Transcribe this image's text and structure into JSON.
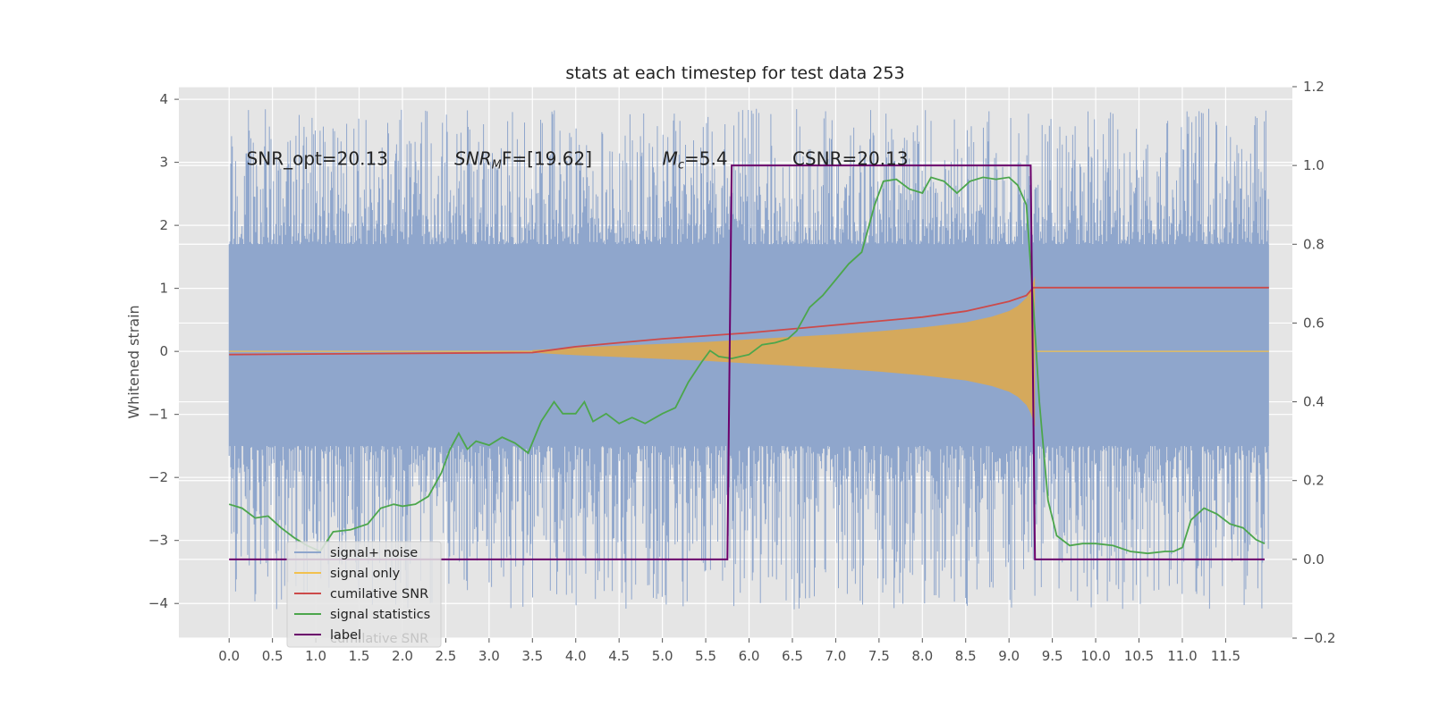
{
  "chart_data": {
    "type": "line",
    "title": "stats at each timestep for test data 253",
    "ylabel": "Whitened strain",
    "xlim": [
      -0.58,
      12.27
    ],
    "ylim": [
      -4.55,
      4.2
    ],
    "y2lim": [
      -0.2,
      1.2
    ],
    "grid": true,
    "x_ticks": [
      0.0,
      0.5,
      1.0,
      1.5,
      2.0,
      2.5,
      3.0,
      3.5,
      4.0,
      4.5,
      5.0,
      5.5,
      6.0,
      6.5,
      7.0,
      7.5,
      8.0,
      8.5,
      9.0,
      9.5,
      10.0,
      10.5,
      11.0,
      11.5
    ],
    "x_tick_labels": [
      "0.0",
      "0.5",
      "1.0",
      "1.5",
      "2.0",
      "2.5",
      "3.0",
      "3.5",
      "4.0",
      "4.5",
      "5.0",
      "5.5",
      "6.0",
      "6.5",
      "7.0",
      "7.5",
      "8.0",
      "8.5",
      "9.0",
      "9.5",
      "10.0",
      "10.5",
      "11.0",
      "11.5"
    ],
    "y_ticks": [
      -4,
      -3,
      -2,
      -1,
      0,
      1,
      2,
      3,
      4
    ],
    "y_tick_labels": [
      "−4",
      "−3",
      "−2",
      "−1",
      "0",
      "1",
      "2",
      "3",
      "4"
    ],
    "y2_ticks": [
      -0.2,
      0.0,
      0.2,
      0.4,
      0.6,
      0.8,
      1.0,
      1.2
    ],
    "y2_tick_labels": [
      "−0.2",
      "0.0",
      "0.2",
      "0.4",
      "0.6",
      "0.8",
      "1.0",
      "1.2"
    ],
    "annotations": [
      {
        "text": "SNR_opt=20.13",
        "x": 0.2,
        "y": 3.0
      },
      {
        "text_main": "SNR",
        "text_sub": "M",
        "text_rest": "F=[19.62]",
        "x": 2.6,
        "y": 3.0
      },
      {
        "text_main": "M",
        "text_sub": "c",
        "text_rest": "=5.4",
        "x": 5.0,
        "y": 3.0
      },
      {
        "text": "CSNR=20.13",
        "x": 6.5,
        "y": 3.0
      }
    ],
    "legend": {
      "placement": "lower-left",
      "entries": [
        {
          "label": "signal+ noise",
          "color": "#8fa6cc"
        },
        {
          "label": "signal only",
          "color": "#f2c14e"
        },
        {
          "label": "cumilative SNR",
          "color": "#cc4a4a"
        },
        {
          "label": "signal statistics",
          "color": "#4ca64c"
        },
        {
          "label": "label",
          "color": "#6b006b"
        }
      ],
      "ghost_text": "cumilative SNR"
    },
    "series": [
      {
        "name": "signal+ noise",
        "axis": "left",
        "color": "#8fa6cc",
        "x_start": 0.0,
        "x_end": 12.0,
        "band_upper": 1.7,
        "band_lower": -1.5,
        "spike_max": 3.85,
        "spike_min": -4.1
      },
      {
        "name": "signal only",
        "axis": "left",
        "color": "#f2c14e",
        "x": [
          3.5,
          4.0,
          4.5,
          5.0,
          5.5,
          6.0,
          6.5,
          7.0,
          7.5,
          8.0,
          8.5,
          8.8,
          9.0,
          9.1,
          9.2,
          9.25,
          9.28,
          9.3
        ],
        "envelope": [
          0.02,
          0.06,
          0.09,
          0.12,
          0.15,
          0.19,
          0.23,
          0.27,
          0.32,
          0.38,
          0.46,
          0.55,
          0.64,
          0.72,
          0.85,
          0.98,
          1.1,
          1.2
        ]
      },
      {
        "name": "cumilative SNR",
        "axis": "right",
        "color": "#cc4a4a",
        "x": [
          0.0,
          3.5,
          4.0,
          5.0,
          6.0,
          7.0,
          8.0,
          8.5,
          9.0,
          9.2,
          9.28,
          9.3,
          12.0
        ],
        "y": [
          0.52,
          0.525,
          0.54,
          0.56,
          0.575,
          0.595,
          0.615,
          0.63,
          0.655,
          0.67,
          0.69,
          0.69,
          0.69
        ]
      },
      {
        "name": "signal statistics",
        "axis": "right",
        "color": "#4ca64c",
        "x": [
          0.0,
          0.15,
          0.3,
          0.45,
          0.6,
          0.75,
          0.9,
          1.05,
          1.2,
          1.4,
          1.6,
          1.75,
          1.9,
          2.0,
          2.15,
          2.3,
          2.45,
          2.55,
          2.65,
          2.75,
          2.85,
          3.0,
          3.15,
          3.3,
          3.45,
          3.6,
          3.75,
          3.85,
          4.0,
          4.1,
          4.2,
          4.35,
          4.5,
          4.65,
          4.8,
          5.0,
          5.15,
          5.3,
          5.45,
          5.55,
          5.65,
          5.8,
          6.0,
          6.15,
          6.3,
          6.45,
          6.55,
          6.7,
          6.85,
          7.0,
          7.15,
          7.3,
          7.45,
          7.55,
          7.7,
          7.85,
          8.0,
          8.1,
          8.25,
          8.4,
          8.55,
          8.7,
          8.85,
          9.0,
          9.1,
          9.2,
          9.28,
          9.35,
          9.45,
          9.55,
          9.7,
          9.85,
          10.0,
          10.2,
          10.4,
          10.6,
          10.8,
          10.9,
          11.0,
          11.1,
          11.25,
          11.4,
          11.55,
          11.7,
          11.85,
          11.95
        ],
        "y": [
          0.14,
          0.13,
          0.105,
          0.11,
          0.08,
          0.055,
          0.035,
          0.02,
          0.07,
          0.075,
          0.09,
          0.13,
          0.14,
          0.135,
          0.14,
          0.16,
          0.22,
          0.28,
          0.32,
          0.28,
          0.3,
          0.29,
          0.31,
          0.295,
          0.27,
          0.35,
          0.4,
          0.37,
          0.37,
          0.4,
          0.35,
          0.37,
          0.345,
          0.36,
          0.345,
          0.37,
          0.385,
          0.45,
          0.5,
          0.53,
          0.515,
          0.51,
          0.52,
          0.545,
          0.55,
          0.56,
          0.58,
          0.64,
          0.67,
          0.71,
          0.75,
          0.78,
          0.9,
          0.96,
          0.965,
          0.94,
          0.93,
          0.97,
          0.96,
          0.93,
          0.96,
          0.97,
          0.965,
          0.97,
          0.95,
          0.9,
          0.65,
          0.4,
          0.15,
          0.06,
          0.035,
          0.04,
          0.04,
          0.035,
          0.02,
          0.015,
          0.02,
          0.02,
          0.03,
          0.1,
          0.13,
          0.115,
          0.09,
          0.08,
          0.05,
          0.04
        ]
      },
      {
        "name": "label",
        "axis": "right",
        "color": "#6b006b",
        "x": [
          0.0,
          5.75,
          5.8,
          9.25,
          9.3,
          11.95
        ],
        "y": [
          0.0,
          0.0,
          1.0,
          1.0,
          0.0,
          0.0
        ]
      }
    ]
  }
}
